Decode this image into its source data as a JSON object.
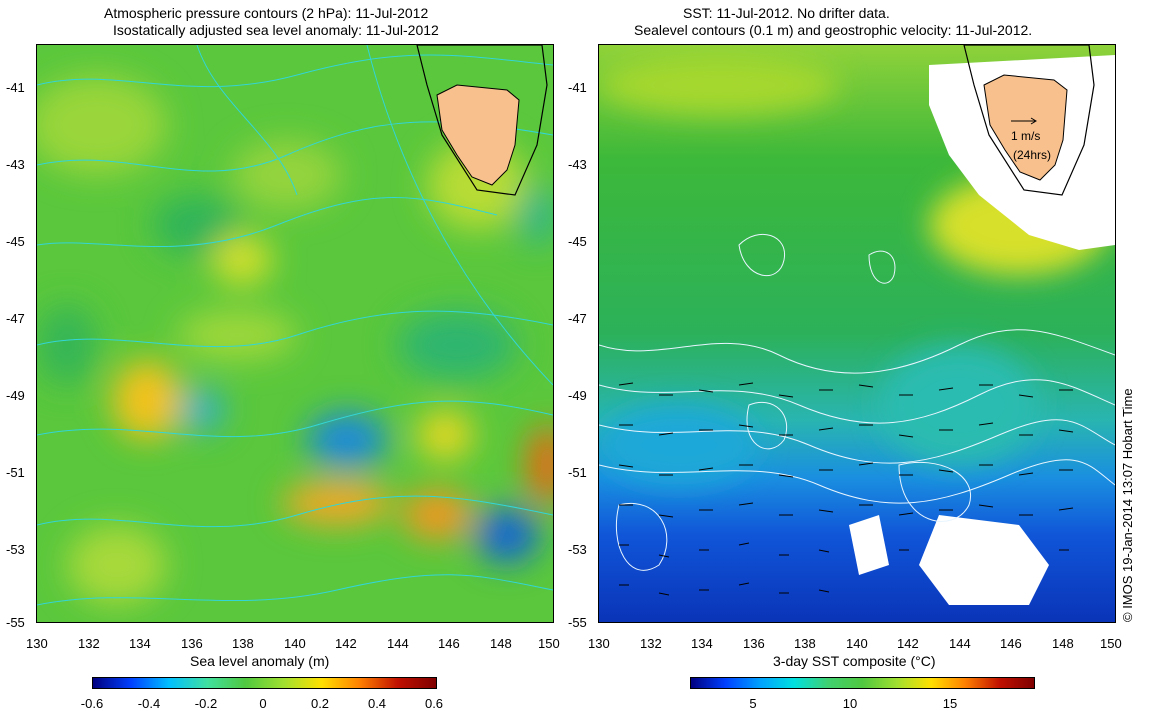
{
  "left_panel": {
    "title_line1": "Atmospheric pressure contours (2 hPa): 11-Jul-2012",
    "title_line2": "Isostatically adjusted sea level anomaly: 11-Jul-2012",
    "y_ticks": [
      "-41",
      "-43",
      "-45",
      "-47",
      "-49",
      "-51",
      "-53",
      "-55"
    ],
    "x_ticks": [
      "130",
      "132",
      "134",
      "136",
      "138",
      "140",
      "142",
      "144",
      "146",
      "148",
      "150"
    ],
    "colorbar_label": "Sea level anomaly (m)",
    "colorbar_ticks": [
      "-0.6",
      "-0.4",
      "-0.2",
      "0",
      "0.2",
      "0.4",
      "0.6"
    ]
  },
  "right_panel": {
    "title_line1": "SST: 11-Jul-2012. No drifter data.",
    "title_line2": "Sealevel contours (0.1 m) and geostrophic velocity: 11-Jul-2012.",
    "y_ticks": [
      "-41",
      "-43",
      "-45",
      "-47",
      "-49",
      "-51",
      "-53",
      "-55"
    ],
    "x_ticks": [
      "130",
      "132",
      "134",
      "136",
      "138",
      "140",
      "142",
      "144",
      "146",
      "148",
      "150"
    ],
    "scale_label": "1 m/s",
    "scale_sub": "(24hrs)",
    "colorbar_label": "3-day SST composite (°C)",
    "colorbar_ticks": [
      "5",
      "10",
      "15"
    ]
  },
  "credit": "© IMOS 19-Jan-2014 13:07 Hobart Time",
  "colors": {
    "land": "#f7c08d",
    "cloud_mask": "#ffffff",
    "ocean_mid": "#4fc24f",
    "pressure_contours": "#33d6d6"
  }
}
